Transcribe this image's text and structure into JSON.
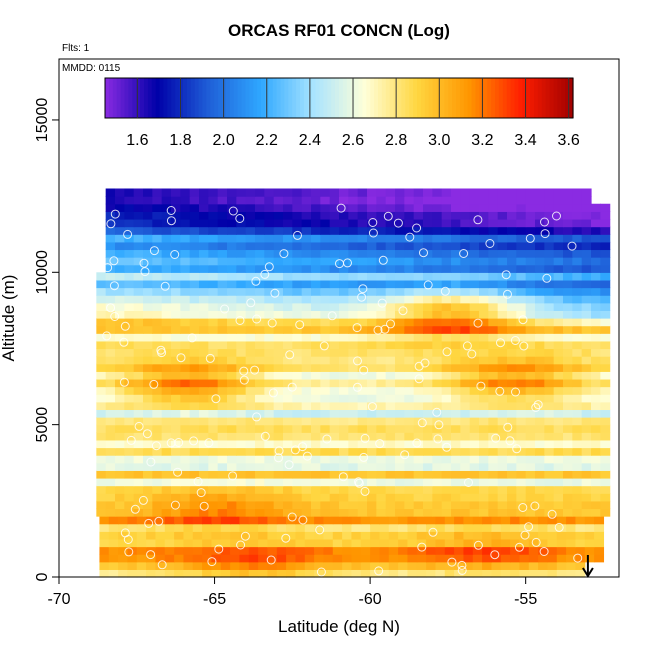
{
  "chart_data": {
    "type": "heatmap",
    "title": "ORCAS RF01 CONCN (Log)",
    "annotations": {
      "flights": "Flts: 1",
      "date": "MMDD: 0115"
    },
    "xlabel": "Latitude (deg N)",
    "ylabel": "Altitude (m)",
    "xlim": [
      -70,
      -52
    ],
    "ylim": [
      0,
      17000
    ],
    "xticks": [
      -70,
      -65,
      -60,
      -55
    ],
    "yticks": [
      0,
      5000,
      10000,
      15000
    ],
    "colorbar": {
      "range": [
        1.45,
        3.62
      ],
      "ticks": [
        "1.6",
        "1.8",
        "2.0",
        "2.2",
        "2.4",
        "2.6",
        "2.8",
        "3.0",
        "3.2",
        "3.4",
        "3.6"
      ],
      "colors": [
        "#8a2be2",
        "#0000a8",
        "#1f5fd8",
        "#2fa8ff",
        "#a8e4ff",
        "#ffffd8",
        "#ffd640",
        "#ff9600",
        "#ff1e00",
        "#a00000"
      ],
      "legend_position": "top"
    },
    "grid": false,
    "wind_arrow": {
      "lat": -53,
      "note": "downward arrow near surface"
    },
    "profile": [
      {
        "alt": 500,
        "value": 3.0
      },
      {
        "alt": 1500,
        "value": 3.0
      },
      {
        "alt": 2500,
        "value": 2.9
      },
      {
        "alt": 3500,
        "value": 2.7
      },
      {
        "alt": 4500,
        "value": 2.6
      },
      {
        "alt": 5500,
        "value": 2.75
      },
      {
        "alt": 6500,
        "value": 2.8
      },
      {
        "alt": 7500,
        "value": 2.7
      },
      {
        "alt": 8500,
        "value": 2.9
      },
      {
        "alt": 9500,
        "value": 2.4
      },
      {
        "alt": 10500,
        "value": 2.2
      },
      {
        "alt": 11500,
        "value": 1.9
      },
      {
        "alt": 12300,
        "value": 1.7
      }
    ],
    "hotspots": [
      {
        "lat": -57.5,
        "alt": 8500,
        "value": 3.45
      },
      {
        "lat": -66,
        "alt": 6200,
        "value": 3.35
      },
      {
        "lat": -55.5,
        "alt": 6300,
        "value": 3.3
      },
      {
        "lat": -65,
        "alt": 2000,
        "value": 3.2
      },
      {
        "lat": -56.5,
        "alt": 800,
        "value": 3.2
      },
      {
        "lat": -64,
        "alt": 200,
        "value": 3.25
      }
    ]
  }
}
